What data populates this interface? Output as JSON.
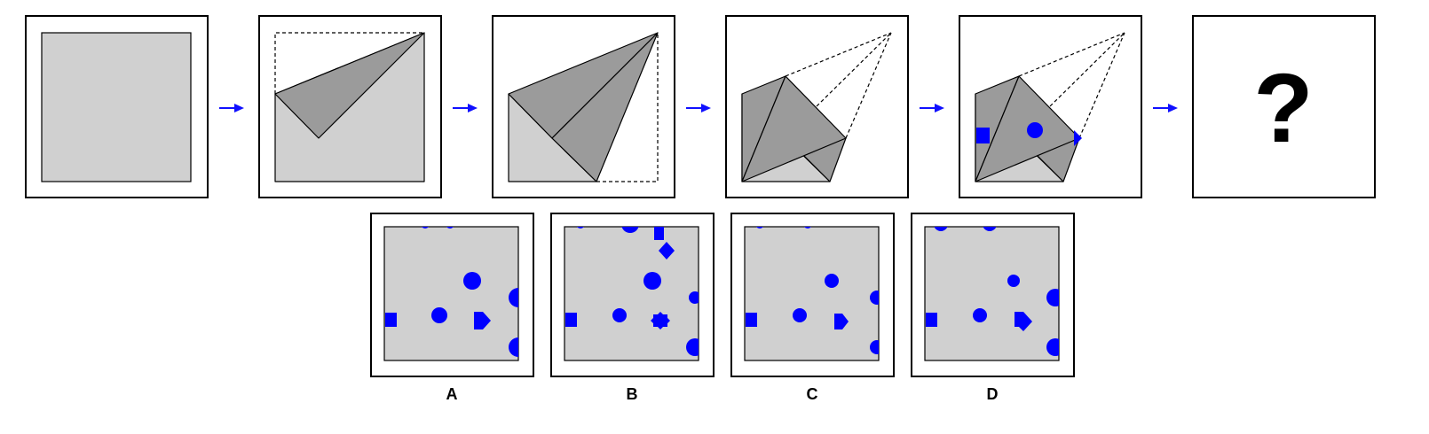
{
  "question_mark": "?",
  "options": [
    {
      "label": "A"
    },
    {
      "label": "B"
    },
    {
      "label": "C"
    },
    {
      "label": "D"
    }
  ],
  "colors": {
    "paper": "#d0d0d0",
    "flap": "#9b9b9b",
    "hole": "#0000ff",
    "arrow": "#1010ff"
  }
}
